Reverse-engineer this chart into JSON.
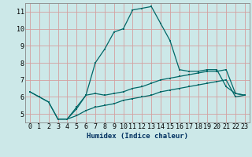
{
  "title": "",
  "xlabel": "Humidex (Indice chaleur)",
  "ylabel": "",
  "bg_color": "#cce8e8",
  "grid_color": "#d4a0a0",
  "line_color": "#006868",
  "xlim": [
    -0.5,
    23.5
  ],
  "ylim": [
    4.5,
    11.5
  ],
  "xticks": [
    0,
    1,
    2,
    3,
    4,
    5,
    6,
    7,
    8,
    9,
    10,
    11,
    12,
    13,
    14,
    15,
    16,
    17,
    18,
    19,
    20,
    21,
    22,
    23
  ],
  "yticks": [
    5,
    6,
    7,
    8,
    9,
    10,
    11
  ],
  "line1_x": [
    0,
    1,
    2,
    3,
    4,
    5,
    6,
    7,
    8,
    9,
    10,
    11,
    12,
    13,
    14,
    15,
    16,
    17,
    18,
    19,
    20,
    21,
    22,
    23
  ],
  "line1_y": [
    6.3,
    6.0,
    5.7,
    4.7,
    4.7,
    5.3,
    6.1,
    6.2,
    6.1,
    6.2,
    6.3,
    6.5,
    6.6,
    6.8,
    7.0,
    7.1,
    7.2,
    7.3,
    7.4,
    7.5,
    7.5,
    7.6,
    6.2,
    6.1
  ],
  "line2_x": [
    0,
    1,
    2,
    3,
    4,
    5,
    6,
    7,
    8,
    9,
    10,
    11,
    12,
    13,
    14,
    15,
    16,
    17,
    18,
    19,
    20,
    21,
    22,
    23
  ],
  "line2_y": [
    6.3,
    6.0,
    5.7,
    4.7,
    4.7,
    5.4,
    6.1,
    8.0,
    8.8,
    9.8,
    10.0,
    11.1,
    11.2,
    11.3,
    10.3,
    9.3,
    7.6,
    7.5,
    7.5,
    7.6,
    7.6,
    6.6,
    6.2,
    6.1
  ],
  "line3_x": [
    3,
    4,
    5,
    6,
    7,
    8,
    9,
    10,
    11,
    12,
    13,
    14,
    15,
    16,
    17,
    18,
    19,
    20,
    21,
    22,
    23
  ],
  "line3_y": [
    4.7,
    4.7,
    4.9,
    5.2,
    5.4,
    5.5,
    5.6,
    5.8,
    5.9,
    6.0,
    6.1,
    6.3,
    6.4,
    6.5,
    6.6,
    6.7,
    6.8,
    6.9,
    7.0,
    6.0,
    6.1
  ]
}
